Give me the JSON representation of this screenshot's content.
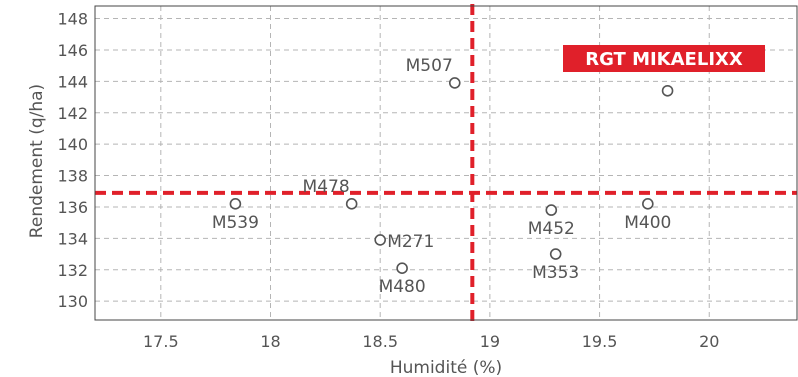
{
  "chart_data": {
    "type": "scatter",
    "xlabel": "Humidité (%)",
    "ylabel": "Rendement (q/ha)",
    "xlim": [
      17.2,
      20.4
    ],
    "ylim": [
      128.8,
      148.8
    ],
    "x_ticks": [
      17.5,
      18,
      18.5,
      19,
      19.5,
      20
    ],
    "x_tick_labels": [
      "17.5",
      "18",
      "18.5",
      "19",
      "19.5",
      "20"
    ],
    "y_ticks": [
      130,
      132,
      134,
      136,
      138,
      140,
      142,
      144,
      146,
      148
    ],
    "grid": true,
    "grid_style": "dashed",
    "reference_lines": {
      "x": 18.92,
      "y": 136.9,
      "color": "#e0202a",
      "style": "dashed"
    },
    "points": [
      {
        "label": "M507",
        "x": 18.84,
        "y": 143.9,
        "label_pos": "upper-left"
      },
      {
        "label": "M478",
        "x": 18.37,
        "y": 136.2,
        "label_pos": "upper-left"
      },
      {
        "label": "M539",
        "x": 17.84,
        "y": 136.2,
        "label_pos": "below"
      },
      {
        "label": "M271",
        "x": 18.5,
        "y": 133.9,
        "label_pos": "right"
      },
      {
        "label": "M480",
        "x": 18.6,
        "y": 132.1,
        "label_pos": "below"
      },
      {
        "label": "M452",
        "x": 19.28,
        "y": 135.8,
        "label_pos": "below"
      },
      {
        "label": "M353",
        "x": 19.3,
        "y": 133.0,
        "label_pos": "below"
      },
      {
        "label": "M400",
        "x": 19.72,
        "y": 136.2,
        "label_pos": "below"
      },
      {
        "label": "RGT MIKAELIXX",
        "x": 19.81,
        "y": 143.4,
        "label_pos": "highlight-box",
        "highlight": true
      }
    ]
  },
  "colors": {
    "reference_line": "#e0202a",
    "highlight_bg": "#e0202a",
    "highlight_text": "#ffffff",
    "marker_stroke": "#555555",
    "grid": "#b5b5b5",
    "text": "#555555"
  }
}
